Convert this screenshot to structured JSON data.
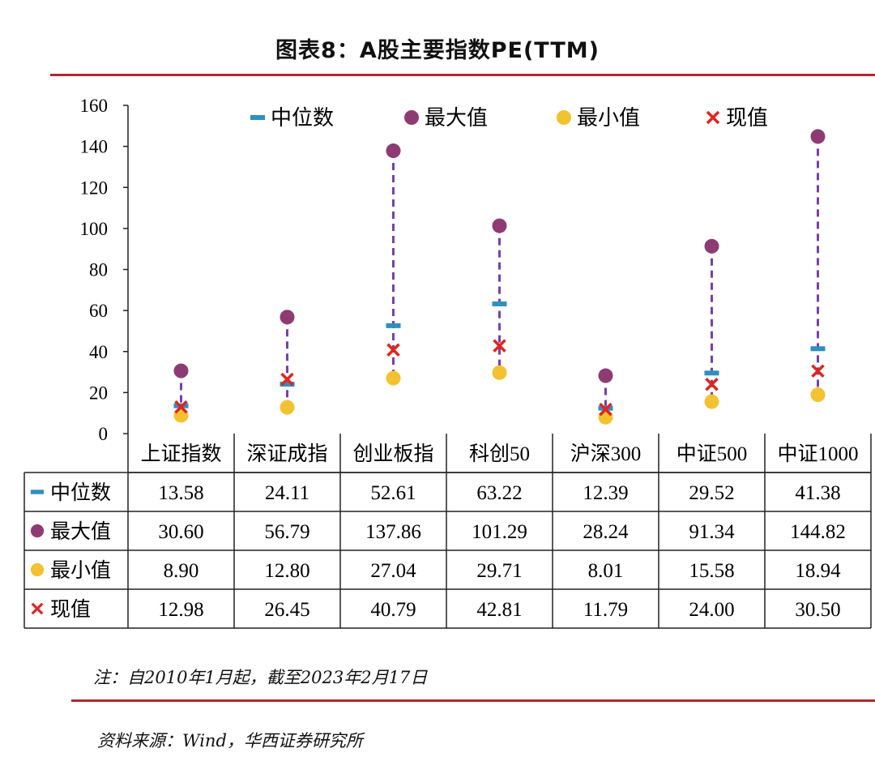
{
  "title": "图表8：A股主要指数PE(TTM)",
  "note": "注：自2010年1月起，截至2023年2月17日",
  "source": "资料来源：Wind，华西证券研究所",
  "colors": {
    "median": "#2f8fbf",
    "max": "#8e3b73",
    "min": "#f2c230",
    "current": "#e0251f",
    "range": "#7a3fa8",
    "rule": "#b3262d"
  },
  "chart_data": {
    "type": "scatter",
    "title": "图表8：A股主要指数PE(TTM)",
    "xlabel": "",
    "ylabel": "",
    "ylim": [
      0,
      160
    ],
    "yticks": [
      "0",
      "20",
      "40",
      "60",
      "80",
      "100",
      "120",
      "140",
      "160"
    ],
    "categories": [
      "上证指数",
      "深证成指",
      "创业板指",
      "科创50",
      "沪深300",
      "中证500",
      "中证1000"
    ],
    "legend_position": "top",
    "series": [
      {
        "name": "中位数",
        "marker": "dash",
        "values": [
          "13.58",
          "24.11",
          "52.61",
          "63.22",
          "12.39",
          "29.52",
          "41.38"
        ]
      },
      {
        "name": "最大值",
        "marker": "circle",
        "values": [
          "30.60",
          "56.79",
          "137.86",
          "101.29",
          "28.24",
          "91.34",
          "144.82"
        ]
      },
      {
        "name": "最小值",
        "marker": "circle",
        "values": [
          "8.90",
          "12.80",
          "27.04",
          "29.71",
          "8.01",
          "15.58",
          "18.94"
        ]
      },
      {
        "name": "现值",
        "marker": "x",
        "values": [
          "12.98",
          "26.45",
          "40.79",
          "42.81",
          "11.79",
          "24.00",
          "30.50"
        ]
      }
    ]
  }
}
